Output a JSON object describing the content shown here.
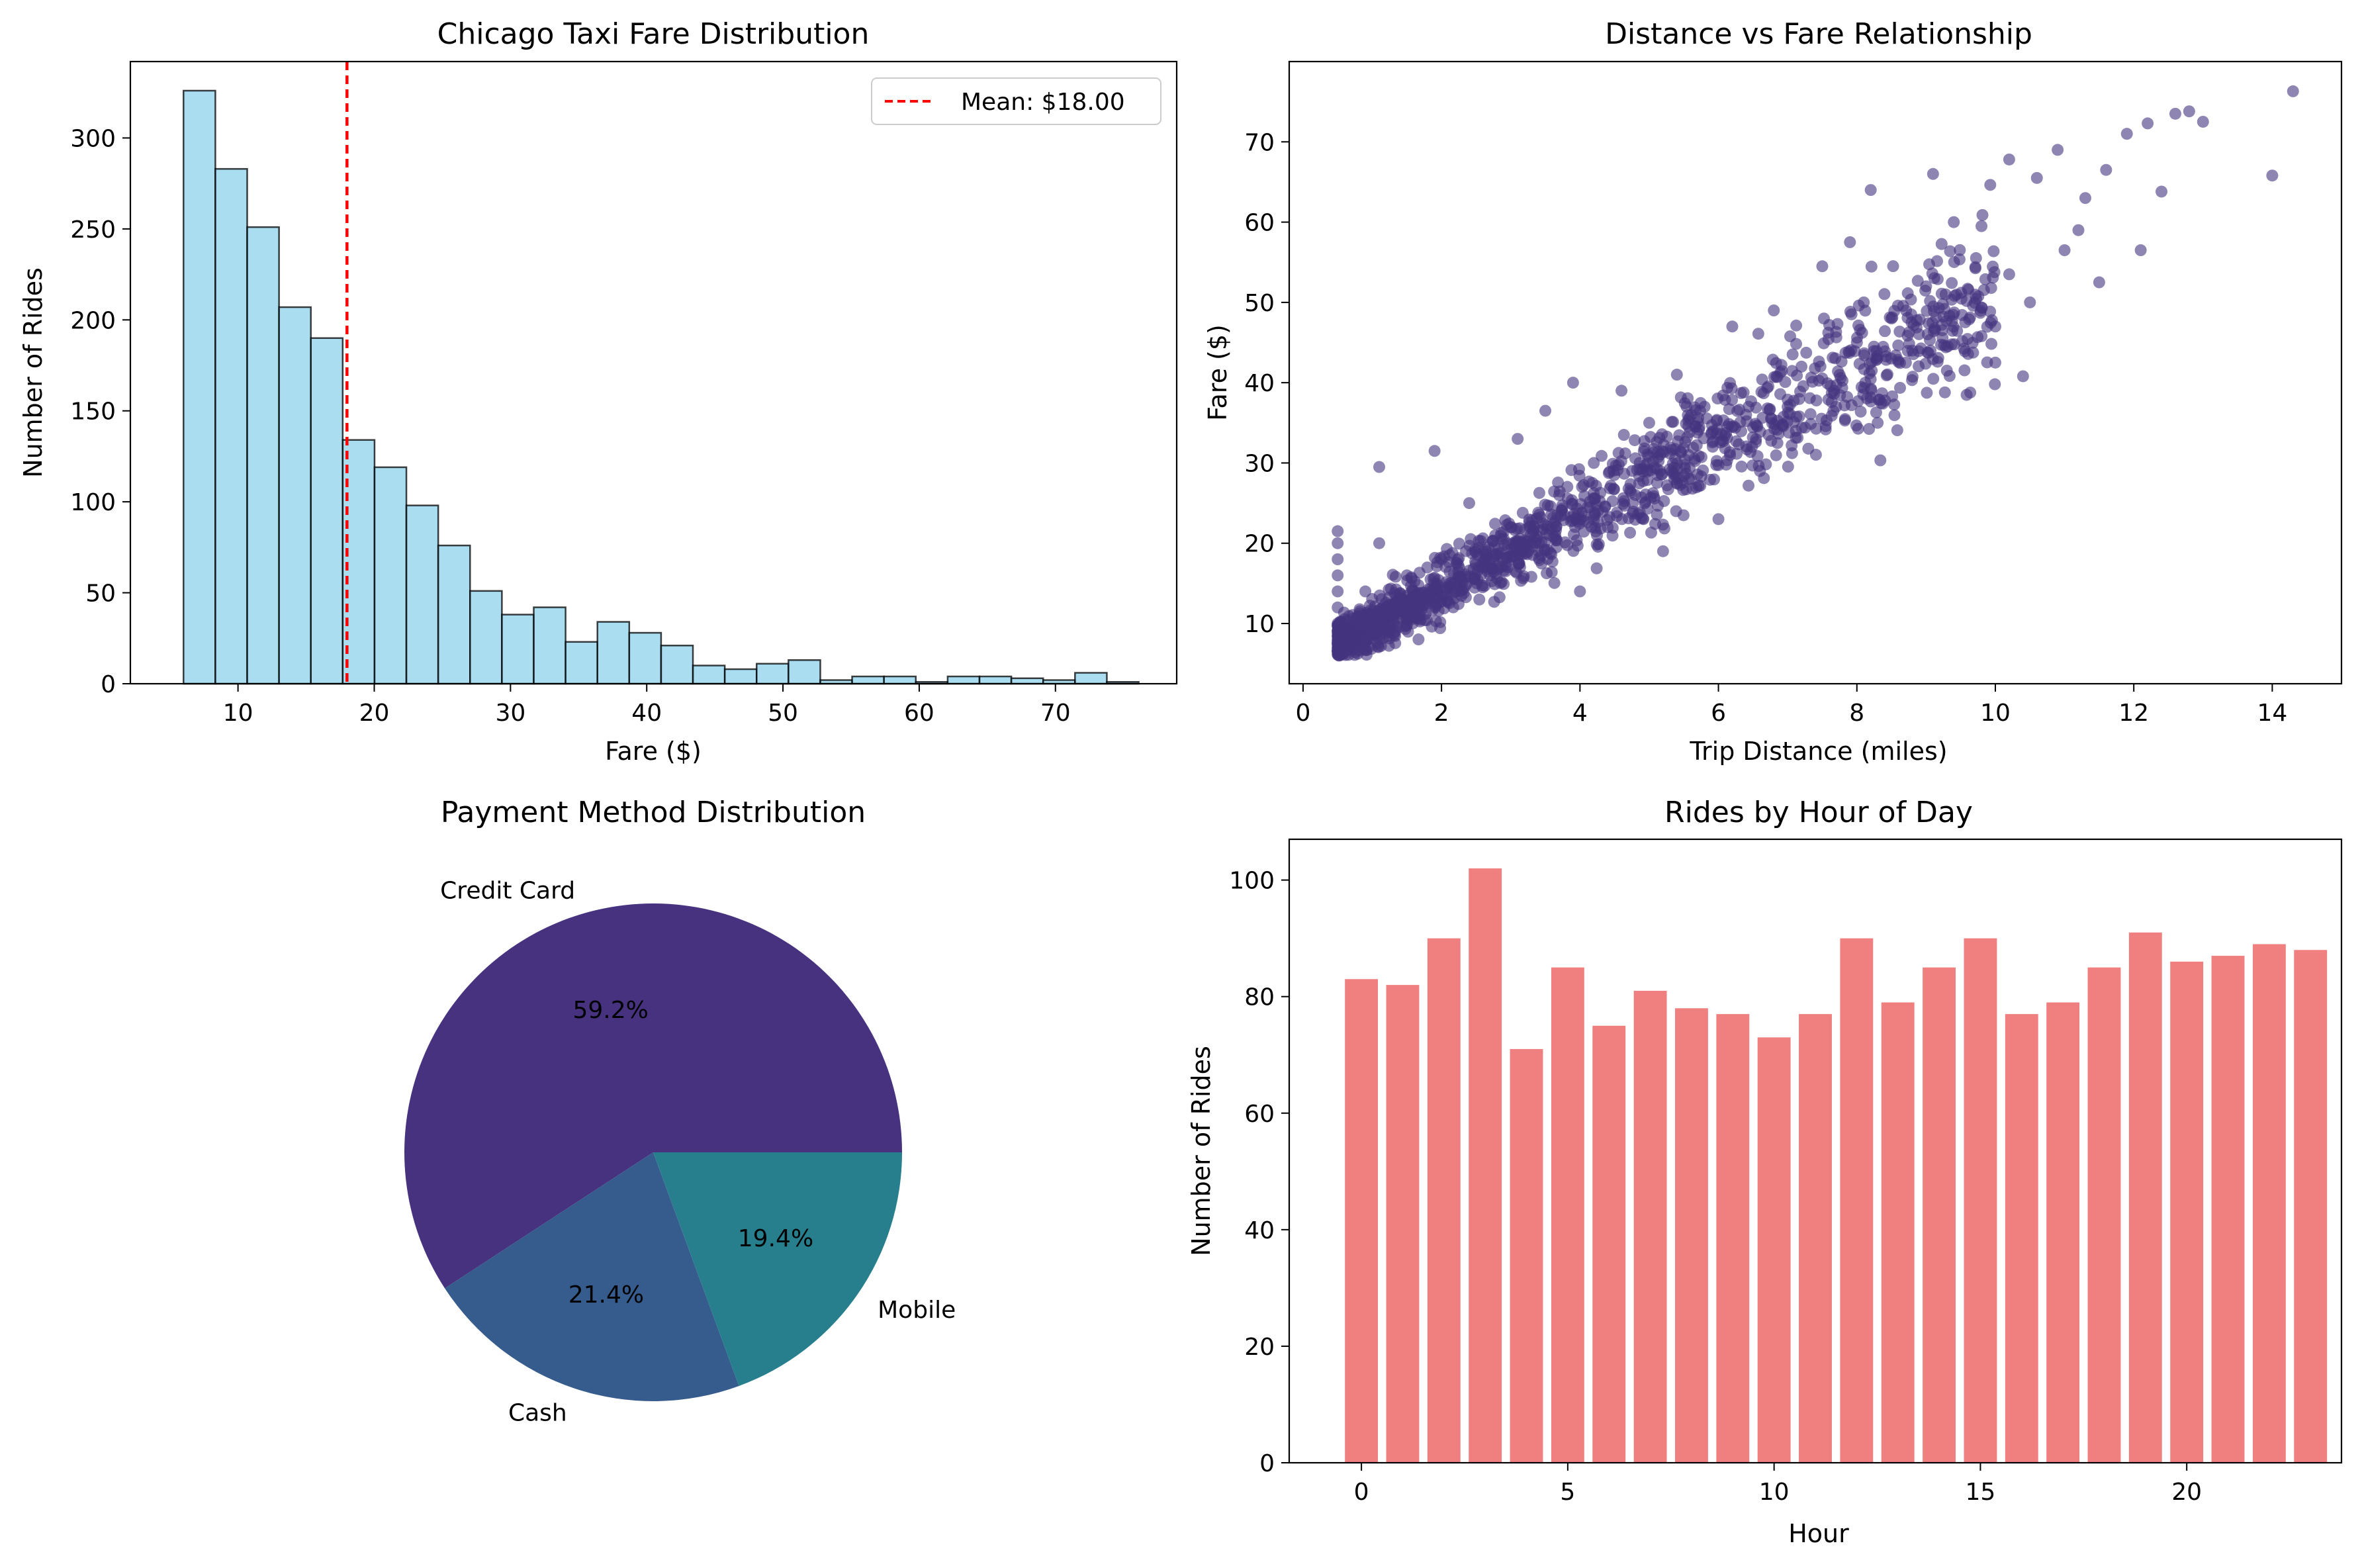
{
  "chart_data": [
    {
      "type": "bar",
      "subtype": "histogram",
      "title": "Chicago Taxi Fare Distribution",
      "xlabel": "Fare ($)",
      "ylabel": "Number of Rides",
      "xlim": [
        2.1,
        78.9
      ],
      "ylim": [
        0,
        342
      ],
      "xticks": [
        10,
        20,
        30,
        40,
        50,
        60,
        70
      ],
      "yticks": [
        0,
        50,
        100,
        150,
        200,
        250,
        300
      ],
      "bin_start": 6.0,
      "bin_width": 2.337,
      "values": [
        326,
        283,
        251,
        207,
        190,
        134,
        119,
        98,
        76,
        51,
        38,
        42,
        23,
        34,
        28,
        21,
        10,
        8,
        11,
        13,
        2,
        4,
        4,
        1,
        4,
        4,
        3,
        2,
        6,
        1
      ],
      "bar_color": "#87ceeb",
      "bar_alpha": 0.7,
      "edge_color": "#000000",
      "mean_line": {
        "value": 18.0,
        "label": "Mean: $18.00",
        "color": "#ff0000",
        "style": "dashed"
      },
      "legend": "top-right",
      "grid": false
    },
    {
      "type": "scatter",
      "title": "Distance vs Fare Relationship",
      "xlabel": "Trip Distance (miles)",
      "ylabel": "Fare ($)",
      "xlim": [
        -0.2,
        15.0
      ],
      "ylim": [
        2.5,
        80.0
      ],
      "xticks": [
        0,
        2,
        4,
        6,
        8,
        10,
        12,
        14
      ],
      "yticks": [
        10,
        20,
        30,
        40,
        50,
        60,
        70
      ],
      "color": "#45337e",
      "alpha": 0.6,
      "points_note": "dense cloud of about 2000 rides, fare ≈ 5.5 × distance + 5 with spread; representative points listed",
      "points": [
        [
          0.5,
          6.5
        ],
        [
          0.5,
          8
        ],
        [
          0.5,
          10
        ],
        [
          0.5,
          12
        ],
        [
          0.5,
          14
        ],
        [
          0.5,
          16
        ],
        [
          0.5,
          18
        ],
        [
          0.5,
          20
        ],
        [
          0.5,
          21.5
        ],
        [
          0.8,
          7.5
        ],
        [
          0.9,
          14
        ],
        [
          1.0,
          9
        ],
        [
          1.1,
          20
        ],
        [
          1.1,
          29.5
        ],
        [
          1.3,
          11
        ],
        [
          1.5,
          16
        ],
        [
          1.7,
          13
        ],
        [
          1.9,
          31.5
        ],
        [
          2.0,
          18
        ],
        [
          2.2,
          14
        ],
        [
          2.4,
          25
        ],
        [
          2.7,
          16
        ],
        [
          3.0,
          22
        ],
        [
          3.1,
          33
        ],
        [
          3.4,
          19
        ],
        [
          3.5,
          36.5
        ],
        [
          3.7,
          26
        ],
        [
          3.9,
          40
        ],
        [
          4.0,
          14
        ],
        [
          4.2,
          30
        ],
        [
          4.4,
          22
        ],
        [
          4.6,
          39
        ],
        [
          4.8,
          26
        ],
        [
          5.0,
          35
        ],
        [
          5.2,
          19
        ],
        [
          5.4,
          41
        ],
        [
          5.6,
          28
        ],
        [
          5.8,
          37
        ],
        [
          6.0,
          23
        ],
        [
          6.2,
          47
        ],
        [
          6.4,
          36
        ],
        [
          6.6,
          29
        ],
        [
          6.8,
          49
        ],
        [
          7.0,
          37
        ],
        [
          7.2,
          42
        ],
        [
          7.5,
          54.5
        ],
        [
          7.7,
          37
        ],
        [
          7.9,
          57.5
        ],
        [
          8.0,
          45
        ],
        [
          8.1,
          50
        ],
        [
          8.2,
          64
        ],
        [
          8.3,
          35
        ],
        [
          8.5,
          48
        ],
        [
          8.8,
          44
        ],
        [
          9.0,
          52
        ],
        [
          9.1,
          66
        ],
        [
          9.3,
          41.5
        ],
        [
          9.4,
          60
        ],
        [
          9.8,
          59.5
        ],
        [
          10.0,
          47
        ],
        [
          10.0,
          42.5
        ],
        [
          10.2,
          67.8
        ],
        [
          10.2,
          53.5
        ],
        [
          10.4,
          40.8
        ],
        [
          10.5,
          50
        ],
        [
          10.6,
          65.5
        ],
        [
          10.9,
          69
        ],
        [
          11.0,
          56.5
        ],
        [
          11.2,
          59
        ],
        [
          11.3,
          63
        ],
        [
          11.5,
          52.5
        ],
        [
          11.6,
          66.5
        ],
        [
          11.9,
          71
        ],
        [
          12.1,
          56.5
        ],
        [
          12.2,
          72.3
        ],
        [
          12.4,
          63.8
        ],
        [
          12.6,
          73.5
        ],
        [
          12.8,
          73.8
        ],
        [
          13.0,
          72.5
        ],
        [
          14.0,
          65.8
        ],
        [
          14.3,
          76.3
        ]
      ],
      "grid": false
    },
    {
      "type": "pie",
      "title": "Payment Method Distribution",
      "slices": [
        {
          "label": "Credit Card",
          "value": 59.2,
          "pct_label": "59.2%",
          "color": "#46327e"
        },
        {
          "label": "Cash",
          "value": 21.4,
          "pct_label": "21.4%",
          "color": "#365c8d"
        },
        {
          "label": "Mobile",
          "value": 19.4,
          "pct_label": "19.4%",
          "color": "#277f8e"
        }
      ]
    },
    {
      "type": "bar",
      "title": "Rides by Hour of Day",
      "xlabel": "Hour",
      "ylabel": "Number of Rides",
      "xlim": [
        -1.75,
        23.75
      ],
      "ylim": [
        0,
        107
      ],
      "xticks": [
        0,
        5,
        10,
        15,
        20
      ],
      "yticks": [
        0,
        20,
        40,
        60,
        80,
        100
      ],
      "categories": [
        0,
        1,
        2,
        3,
        4,
        5,
        6,
        7,
        8,
        9,
        10,
        11,
        12,
        13,
        14,
        15,
        16,
        17,
        18,
        19,
        20,
        21,
        22,
        23
      ],
      "values": [
        83,
        82,
        90,
        102,
        71,
        85,
        75,
        81,
        78,
        77,
        73,
        77,
        90,
        79,
        85,
        90,
        77,
        79,
        85,
        91,
        86,
        87,
        89,
        88
      ],
      "bar_color": "#f08080",
      "grid": false
    }
  ]
}
